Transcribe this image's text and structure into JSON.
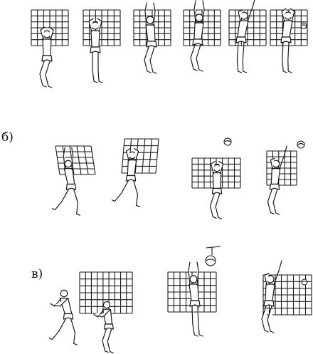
{
  "labels": {
    "row_b": "б)",
    "row_v": "в)"
  },
  "colors": {
    "ink": "#1a1a1a",
    "paper": "#ffffff"
  }
}
